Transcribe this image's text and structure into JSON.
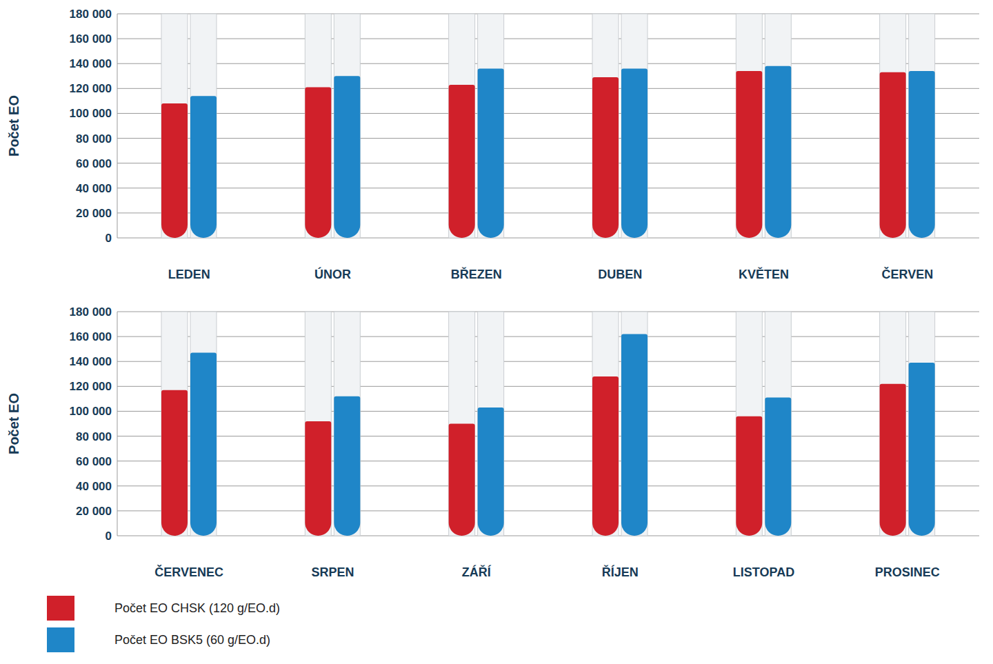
{
  "chart_data": [
    {
      "type": "bar",
      "y_label": "Počet EO",
      "categories": [
        "LEDEN",
        "ÚNOR",
        "BŘEZEN",
        "DUBEN",
        "KVĚTEN",
        "ČERVEN"
      ],
      "series": [
        {
          "name": "Počet EO CHSK (120 g/EO.d)",
          "color": "#d0202a",
          "values": [
            108000,
            121000,
            123000,
            129000,
            134000,
            133000
          ]
        },
        {
          "name": "Počet EO BSK5 (60 g/EO.d)",
          "color": "#1f86c8",
          "values": [
            114000,
            130000,
            136000,
            136000,
            138000,
            134000
          ]
        }
      ],
      "ylim": [
        0,
        180000
      ],
      "yticks": [
        0,
        {
          "value": 20000,
          "label": "20 000"
        },
        {
          "value": 40000,
          "label": "40 000"
        },
        {
          "value": 60000,
          "label": "60 000"
        },
        {
          "value": 80000,
          "label": "80 000"
        },
        {
          "value": 100000,
          "label": "100 000"
        },
        {
          "value": 120000,
          "label": "120 000"
        },
        {
          "value": 140000,
          "label": "140 000"
        },
        {
          "value": 160000,
          "label": "160 000"
        },
        {
          "value": 180000,
          "label": "180 000"
        }
      ],
      "grid": true
    },
    {
      "type": "bar",
      "y_label": "Počet EO",
      "categories": [
        "ČERVENEC",
        "SRPEN",
        "ZÁŘÍ",
        "ŘÍJEN",
        "LISTOPAD",
        "PROSINEC"
      ],
      "series": [
        {
          "name": "Počet EO CHSK (120 g/EO.d)",
          "color": "#d0202a",
          "values": [
            117000,
            92000,
            90000,
            128000,
            96000,
            122000
          ]
        },
        {
          "name": "Počet EO BSK5 (60 g/EO.d)",
          "color": "#1f86c8",
          "values": [
            147000,
            112000,
            103000,
            162000,
            111000,
            139000
          ]
        }
      ],
      "ylim": [
        0,
        180000
      ],
      "yticks": [
        0,
        {
          "value": 20000,
          "label": "20 000"
        },
        {
          "value": 40000,
          "label": "40 000"
        },
        {
          "value": 60000,
          "label": "60 000"
        },
        {
          "value": 80000,
          "label": "80 000"
        },
        {
          "value": 100000,
          "label": "100 000"
        },
        {
          "value": 120000,
          "label": "120 000"
        },
        {
          "value": 140000,
          "label": "140 000"
        },
        {
          "value": 160000,
          "label": "160 000"
        },
        {
          "value": 180000,
          "label": "180 000"
        }
      ],
      "grid": true,
      "legend": "bottom"
    }
  ]
}
